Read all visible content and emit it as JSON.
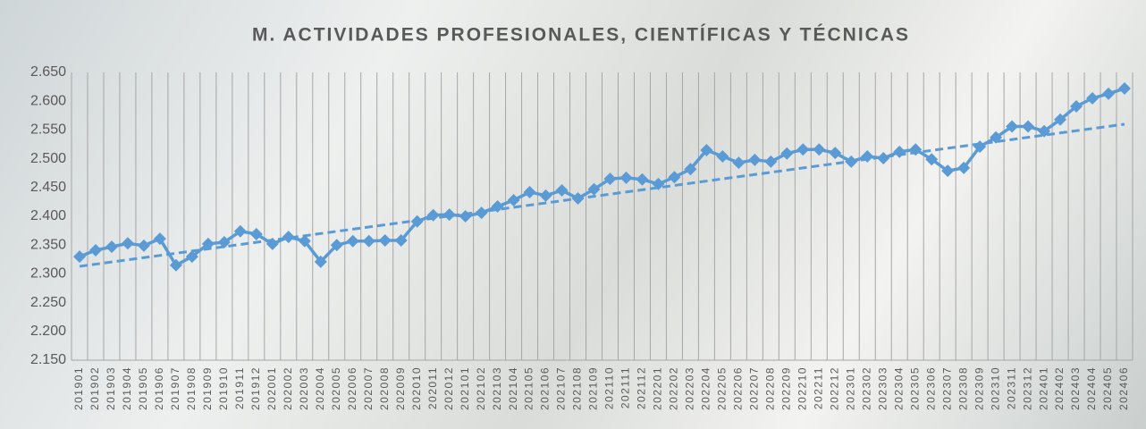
{
  "chart_data": {
    "type": "line",
    "title": "M. ACTIVIDADES PROFESIONALES, CIENTÍFICAS Y TÉCNICAS",
    "categories": [
      "201901",
      "201902",
      "201903",
      "201904",
      "201905",
      "201906",
      "201907",
      "201908",
      "201909",
      "201910",
      "201911",
      "201912",
      "202001",
      "202002",
      "202003",
      "202004",
      "202005",
      "202006",
      "202007",
      "202008",
      "202009",
      "202010",
      "202011",
      "202012",
      "202101",
      "202102",
      "202103",
      "202104",
      "202105",
      "202106",
      "202107",
      "202108",
      "202109",
      "202110",
      "202111",
      "202112",
      "202201",
      "202202",
      "202203",
      "202204",
      "202205",
      "202206",
      "202207",
      "202208",
      "202209",
      "202210",
      "202211",
      "202212",
      "202301",
      "202302",
      "202303",
      "202304",
      "202305",
      "202306",
      "202307",
      "202308",
      "202309",
      "202310",
      "202311",
      "202312",
      "202401",
      "202402",
      "202403",
      "202404",
      "202405",
      "202406"
    ],
    "values": [
      2330,
      2341,
      2347,
      2353,
      2349,
      2361,
      2315,
      2330,
      2352,
      2355,
      2374,
      2369,
      2352,
      2364,
      2357,
      2321,
      2350,
      2357,
      2357,
      2358,
      2358,
      2391,
      2402,
      2403,
      2400,
      2406,
      2417,
      2428,
      2442,
      2436,
      2445,
      2431,
      2447,
      2465,
      2467,
      2464,
      2456,
      2468,
      2482,
      2515,
      2504,
      2493,
      2498,
      2495,
      2509,
      2516,
      2516,
      2510,
      2495,
      2504,
      2501,
      2512,
      2516,
      2499,
      2479,
      2484,
      2521,
      2537,
      2556,
      2556,
      2548,
      2568,
      2591,
      2605,
      2613,
      2622
    ],
    "color": "#5b9bd5",
    "trend": {
      "start": 2313,
      "end": 2560,
      "color": "#5b9bd5"
    },
    "ylim": [
      2150,
      2650
    ],
    "yticks": [
      {
        "value": 2150,
        "label": "2.150"
      },
      {
        "value": 2200,
        "label": "2.200"
      },
      {
        "value": 2250,
        "label": "2.250"
      },
      {
        "value": 2300,
        "label": "2.300"
      },
      {
        "value": 2350,
        "label": "2.350"
      },
      {
        "value": 2400,
        "label": "2.400"
      },
      {
        "value": 2450,
        "label": "2.450"
      },
      {
        "value": 2500,
        "label": "2.500"
      },
      {
        "value": 2550,
        "label": "2.550"
      },
      {
        "value": 2600,
        "label": "2.600"
      },
      {
        "value": 2650,
        "label": "2.650"
      }
    ],
    "grid": false
  }
}
